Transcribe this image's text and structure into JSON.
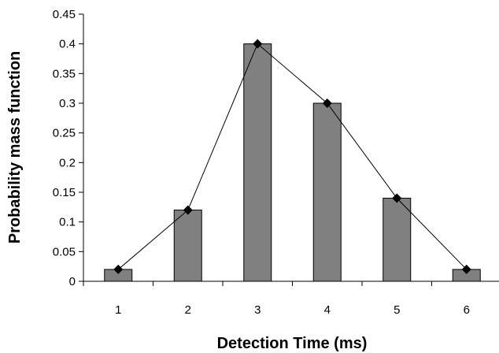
{
  "chart_data": {
    "type": "bar",
    "title": "",
    "xlabel": "Detection Time (ms)",
    "ylabel": "Probability mass function",
    "categories": [
      "1",
      "2",
      "3",
      "4",
      "5",
      "6"
    ],
    "series": [
      {
        "type": "bar",
        "values": [
          0.02,
          0.12,
          0.4,
          0.3,
          0.14,
          0.02
        ],
        "color": "#808080"
      },
      {
        "type": "line",
        "marker": "diamond",
        "values": [
          0.02,
          0.12,
          0.4,
          0.3,
          0.14,
          0.02
        ],
        "color": "#000000"
      }
    ],
    "ylim": [
      0,
      0.45
    ],
    "yticks": [
      "0",
      "0.05",
      "0.1",
      "0.15",
      "0.2",
      "0.25",
      "0.3",
      "0.35",
      "0.4",
      "0.45"
    ],
    "grid": false,
    "legend": "none"
  }
}
